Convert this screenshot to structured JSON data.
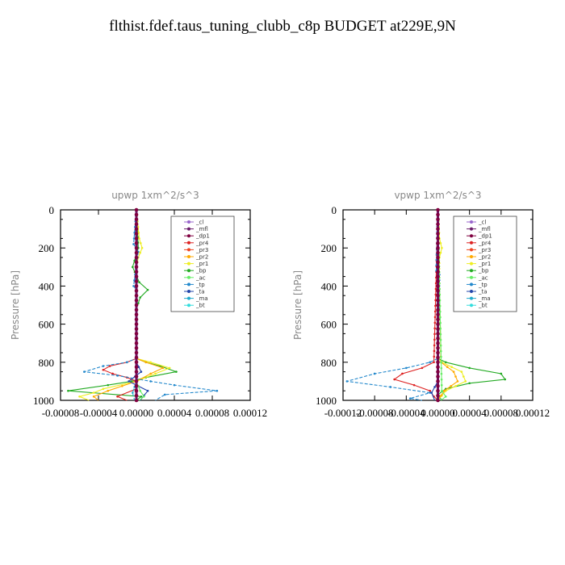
{
  "title": "flthist.fdef.taus_tuning_clubb_c8p  BUDGET at229E,9N",
  "colors": {
    "_cl": "#9966cc",
    "_mfl": "#6a1b6a",
    "_dp1": "#800040",
    "_pr4": "#dd2222",
    "_pr3": "#ee4422",
    "_pr2": "#ffaa00",
    "_pr1": "#eeee22",
    "_bp": "#22aa22",
    "_ac": "#66ee66",
    "_tp": "#2288cc",
    "_ta": "#2244aa",
    "_ma": "#22aacc",
    "_bt": "#33dddd"
  },
  "chart_data": [
    {
      "type": "line",
      "title": "upwp   1xm^2/s^3",
      "ylabel": "Pressure  [hPa]",
      "xlim": [
        -8e-05,
        0.00012
      ],
      "ylim": [
        1000,
        0
      ],
      "xticks": [
        "-0.00008",
        "-0.00004",
        "0.00000",
        "0.00004",
        "0.00008",
        "0.00012"
      ],
      "yticks": [
        "0",
        "200",
        "400",
        "600",
        "800",
        "1000"
      ],
      "legend": [
        "_cl",
        "_mfl",
        "_dp1",
        "_pr4",
        "_pr3",
        "_pr2",
        "_pr1",
        "_bp",
        "_ac",
        "_tp",
        "_ta",
        "_ma",
        "_bt"
      ],
      "legend_position": "top-right",
      "series": [
        {
          "name": "_bp",
          "p": [
            0,
            200,
            300,
            380,
            420,
            460,
            520,
            780,
            800,
            820,
            850,
            880,
            900,
            920,
            950,
            980,
            1000
          ],
          "v": [
            0,
            2e-06,
            -4e-06,
            3e-06,
            1.2e-05,
            4e-06,
            0,
            0,
            1e-05,
            2.5e-05,
            4.2e-05,
            1e-05,
            -5e-06,
            -3e-05,
            -7.2e-05,
            5e-06,
            0
          ]
        },
        {
          "name": "_pr1",
          "p": [
            0,
            150,
            200,
            250,
            300,
            780,
            800,
            830,
            860,
            900,
            940,
            960,
            980,
            1000
          ],
          "v": [
            0,
            3e-06,
            6e-06,
            2e-06,
            0,
            0,
            1.5e-05,
            3.5e-05,
            2e-05,
            0,
            -3.5e-05,
            -4.5e-05,
            -6e-05,
            -5e-05
          ]
        },
        {
          "name": "_pr2",
          "p": [
            0,
            780,
            800,
            830,
            860,
            900,
            950,
            980,
            1000
          ],
          "v": [
            0,
            0,
            1e-05,
            2.8e-05,
            1.5e-05,
            0,
            -3e-05,
            -4.5e-05,
            -4e-05
          ]
        },
        {
          "name": "_pr4",
          "p": [
            0,
            780,
            800,
            820,
            840,
            860,
            880,
            900,
            940,
            980,
            1000
          ],
          "v": [
            0,
            0,
            -1e-05,
            -2.8e-05,
            -3.5e-05,
            -2.5e-05,
            -1e-05,
            0,
            0,
            -2e-05,
            -1e-05
          ]
        },
        {
          "name": "_tp",
          "p": [
            0,
            180,
            220,
            400,
            420,
            780,
            800,
            820,
            850,
            870,
            900,
            920,
            950,
            970,
            1000
          ],
          "v": [
            0,
            -3e-06,
            2e-06,
            -3e-06,
            0,
            0,
            -1e-05,
            -3.5e-05,
            -5.5e-05,
            -2e-05,
            1.5e-05,
            4e-05,
            8.5e-05,
            3e-05,
            2e-05
          ]
        },
        {
          "name": "_ta",
          "p": [
            0,
            800,
            850,
            900,
            950,
            1000
          ],
          "v": [
            0,
            0,
            5e-06,
            -8e-06,
            1.2e-05,
            4e-06
          ]
        },
        {
          "name": "_ac",
          "p": [
            0,
            900,
            950,
            980,
            1000
          ],
          "v": [
            0,
            0,
            4e-06,
            8e-06,
            3e-06
          ]
        },
        {
          "name": "_ma",
          "p": [
            0,
            900,
            960,
            1000
          ],
          "v": [
            0,
            0,
            -4e-06,
            -2e-06
          ]
        },
        {
          "name": "_bt",
          "p": [
            0,
            1000
          ],
          "v": [
            0,
            0
          ]
        },
        {
          "name": "_cl",
          "p": [
            0,
            1000
          ],
          "v": [
            0,
            0
          ]
        },
        {
          "name": "_dp1",
          "p": [
            0,
            1000
          ],
          "v": [
            0,
            0
          ]
        },
        {
          "name": "_mfl",
          "p": [
            0,
            1000
          ],
          "v": [
            0,
            0
          ]
        }
      ]
    },
    {
      "type": "line",
      "title": "vpwp   1xm^2/s^3",
      "ylabel": "Pressure  [hPa]",
      "xlim": [
        -0.00012,
        0.00012
      ],
      "ylim": [
        1000,
        0
      ],
      "xticks": [
        "-0.00012",
        "-0.00008",
        "-0.00004",
        "0.00000",
        "0.00004",
        "0.00008",
        "0.00012"
      ],
      "yticks": [
        "0",
        "200",
        "400",
        "600",
        "800",
        "1000"
      ],
      "legend": [
        "_cl",
        "_mfl",
        "_dp1",
        "_pr4",
        "_pr3",
        "_pr2",
        "_pr1",
        "_bp",
        "_ac",
        "_tp",
        "_ta",
        "_ma",
        "_bt"
      ],
      "legend_position": "top-right",
      "series": [
        {
          "name": "_bp",
          "p": [
            0,
            780,
            800,
            830,
            860,
            890,
            910,
            940,
            970,
            1000
          ],
          "v": [
            0,
            0,
            1e-05,
            4e-05,
            8e-05,
            8.5e-05,
            4e-05,
            1e-05,
            0,
            5e-06
          ]
        },
        {
          "name": "_pr1",
          "p": [
            0,
            150,
            200,
            250,
            780,
            800,
            850,
            900,
            950,
            1000
          ],
          "v": [
            0,
            2e-06,
            5e-06,
            2e-06,
            0,
            5e-06,
            3e-05,
            3.5e-05,
            1e-05,
            0
          ]
        },
        {
          "name": "_pr2",
          "p": [
            0,
            800,
            850,
            900,
            950,
            1000
          ],
          "v": [
            0,
            4e-06,
            2e-05,
            2.5e-05,
            8e-06,
            0
          ]
        },
        {
          "name": "_pr4",
          "p": [
            0,
            800,
            830,
            860,
            890,
            920,
            950,
            980,
            1000
          ],
          "v": [
            0,
            -5e-06,
            -2e-05,
            -4.5e-05,
            -5.5e-05,
            -3e-05,
            -1e-05,
            -5e-06,
            0
          ]
        },
        {
          "name": "_tp",
          "p": [
            0,
            320,
            340,
            780,
            800,
            830,
            860,
            900,
            930,
            960,
            990,
            1000
          ],
          "v": [
            0,
            -2e-06,
            2e-06,
            0,
            -1e-05,
            -4e-05,
            -8e-05,
            -0.000115,
            -6e-05,
            -1e-05,
            -3.5e-05,
            -2e-05
          ]
        },
        {
          "name": "_ta",
          "p": [
            0,
            900,
            960,
            1000
          ],
          "v": [
            0,
            0,
            -8e-06,
            -4e-06
          ]
        },
        {
          "name": "_ac",
          "p": [
            0,
            950,
            980,
            1000
          ],
          "v": [
            0,
            5e-06,
            1e-05,
            4e-06
          ]
        },
        {
          "name": "_ma",
          "p": [
            0,
            1000
          ],
          "v": [
            0,
            0
          ]
        },
        {
          "name": "_bt",
          "p": [
            0,
            1000
          ],
          "v": [
            0,
            0
          ]
        },
        {
          "name": "_cl",
          "p": [
            0,
            1000
          ],
          "v": [
            0,
            0
          ]
        },
        {
          "name": "_dp1",
          "p": [
            0,
            1000
          ],
          "v": [
            0,
            0
          ]
        },
        {
          "name": "_mfl",
          "p": [
            0,
            1000
          ],
          "v": [
            0,
            0
          ]
        }
      ]
    }
  ]
}
